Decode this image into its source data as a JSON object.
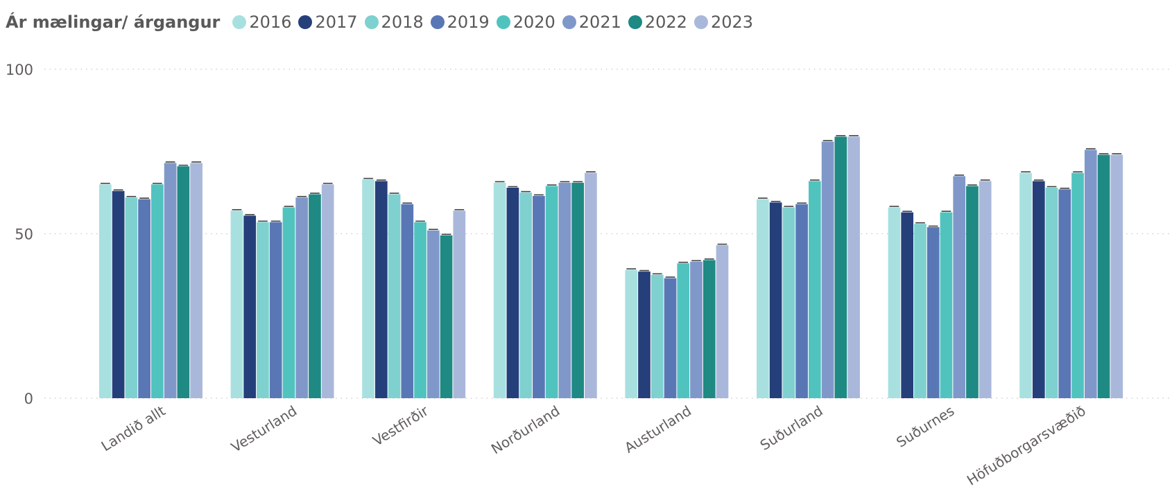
{
  "chart_data": {
    "type": "bar",
    "legend_title": "Ár mælingar/ árgangur",
    "categories": [
      "Landið allt",
      "Vesturland",
      "Vestfirðir",
      "Norðurland",
      "Austurland",
      "Suðurland",
      "Suðurnes",
      "Höfuðborgarsvæðið"
    ],
    "series": [
      {
        "name": "2016",
        "color": "#a8e0e0",
        "values": [
          65,
          57,
          66.5,
          65.5,
          39,
          60.5,
          58,
          68.5
        ]
      },
      {
        "name": "2017",
        "color": "#253f7b",
        "values": [
          63,
          55.5,
          66,
          64,
          38.5,
          59.5,
          56.5,
          66
        ]
      },
      {
        "name": "2018",
        "color": "#7ed1cf",
        "values": [
          61,
          53.5,
          62,
          62.5,
          37.5,
          58,
          53,
          64
        ]
      },
      {
        "name": "2019",
        "color": "#5a77b5",
        "values": [
          60.5,
          53.5,
          59,
          61.5,
          36.5,
          59,
          52,
          63.5
        ]
      },
      {
        "name": "2020",
        "color": "#51c3bf",
        "values": [
          65,
          58,
          53.5,
          64.5,
          41,
          66,
          56.5,
          68.5
        ]
      },
      {
        "name": "2021",
        "color": "#8098c9",
        "values": [
          71.5,
          61,
          51,
          65.5,
          41.5,
          78,
          67.5,
          75.5
        ]
      },
      {
        "name": "2022",
        "color": "#1f8983",
        "values": [
          70.5,
          62,
          49.5,
          65.5,
          42,
          79.5,
          64.5,
          74
        ]
      },
      {
        "name": "2023",
        "color": "#a9b8da",
        "values": [
          71.5,
          65,
          57,
          68.5,
          46.5,
          79.5,
          66,
          74
        ]
      }
    ],
    "ylim": [
      0,
      100
    ],
    "yticks": [
      0,
      50,
      100
    ],
    "ytick_labels": [
      "0",
      "50",
      "100"
    ],
    "grid": true,
    "legend_position": "top-left"
  }
}
